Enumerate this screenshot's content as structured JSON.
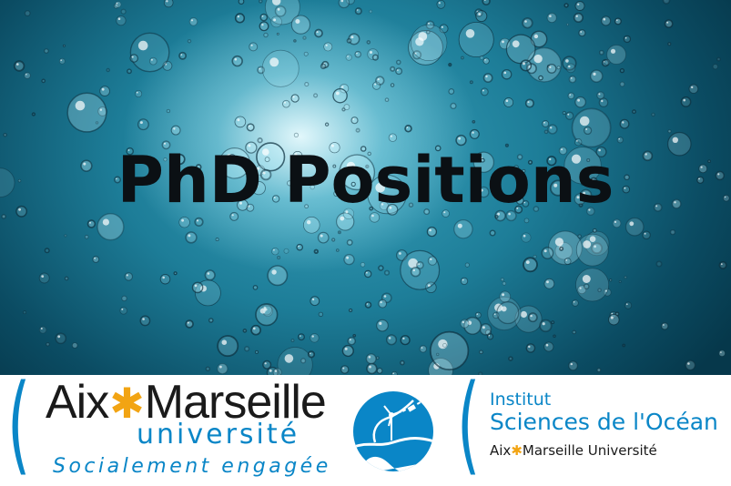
{
  "hero": {
    "title": "PhD Positions",
    "background": "underwater bubbles photo",
    "colors": {
      "deep": "#06384b",
      "mid": "#1d7d98",
      "light": "#bfeff7"
    }
  },
  "logos": {
    "amu": {
      "name_part1": "Aix",
      "star": "✱",
      "name_part2": "Marseille",
      "universite": "université",
      "tagline": "Socialement engagée",
      "color_blue": "#0a86c7",
      "color_star": "#f2a413"
    },
    "emblem": {
      "icon": "ocean-institute-emblem-icon"
    },
    "institute": {
      "line1": "Institut",
      "line2": "Sciences de l'Océan",
      "line3_part1": "Aix",
      "line3_star": "✱",
      "line3_part2": "Marseille Université"
    }
  }
}
